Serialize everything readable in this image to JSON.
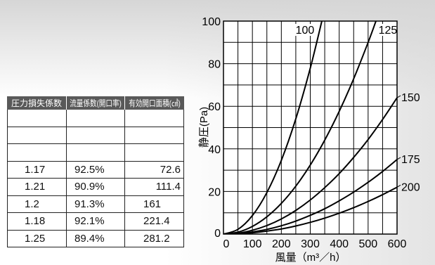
{
  "table": {
    "headers": [
      "圧力損失係数",
      "流量係数(開口率)",
      "有効開口面積(㎠)"
    ],
    "rows": [
      [
        "1.17",
        "92.5%",
        "72.6"
      ],
      [
        "1.21",
        "90.9%",
        "111.4"
      ],
      [
        "1.2",
        "91.3%",
        "161"
      ],
      [
        "1.18",
        "92.1%",
        "221.4"
      ],
      [
        "1.25",
        "89.4%",
        "281.2"
      ]
    ]
  },
  "colors": {
    "header_bg": "#595959",
    "header_text": "#ffffff",
    "table_border": "#222222",
    "curve": "#000000",
    "grid": "#000000",
    "plot_bg": "#ffffff"
  },
  "chart_data": {
    "type": "line",
    "xlabel": "風量（m³／h）",
    "ylabel": "静圧(Pa)",
    "xlim": [
      0,
      600
    ],
    "ylim": [
      0,
      100
    ],
    "xticks": [
      0,
      100,
      200,
      300,
      400,
      500,
      600
    ],
    "yticks": [
      0,
      20,
      40,
      60,
      80,
      100
    ],
    "grid": true,
    "grid_step": {
      "x": 50,
      "y": 10
    },
    "series": [
      {
        "name": "100",
        "x": [
          0,
          50,
          100,
          150,
          200,
          250,
          300,
          340
        ],
        "y": [
          0,
          2.2,
          8.7,
          19.5,
          34.6,
          54.1,
          77.9,
          100
        ]
      },
      {
        "name": "125",
        "x": [
          0,
          50,
          100,
          150,
          200,
          250,
          300,
          350,
          400,
          450,
          500,
          527
        ],
        "y": [
          0,
          0.9,
          3.6,
          8.1,
          14.4,
          22.5,
          32.4,
          44.1,
          57.6,
          72.9,
          90.0,
          100
        ]
      },
      {
        "name": "150",
        "x": [
          0,
          50,
          100,
          150,
          200,
          250,
          300,
          350,
          400,
          450,
          500,
          550,
          600
        ],
        "y": [
          0,
          0.4,
          1.8,
          4.0,
          7.1,
          11.1,
          16.0,
          21.8,
          28.4,
          36.0,
          44.4,
          53.8,
          64.0
        ]
      },
      {
        "name": "175",
        "x": [
          0,
          50,
          100,
          150,
          200,
          250,
          300,
          350,
          400,
          450,
          500,
          550,
          600
        ],
        "y": [
          0,
          0.2,
          1.0,
          2.2,
          3.9,
          6.1,
          8.8,
          11.9,
          15.6,
          19.7,
          24.3,
          29.4,
          35.0
        ]
      },
      {
        "name": "200",
        "x": [
          0,
          50,
          100,
          150,
          200,
          250,
          300,
          350,
          400,
          450,
          500,
          550,
          600
        ],
        "y": [
          0,
          0.2,
          0.6,
          1.4,
          2.4,
          3.8,
          5.5,
          7.5,
          9.8,
          12.4,
          15.3,
          18.5,
          22.0
        ]
      }
    ]
  }
}
